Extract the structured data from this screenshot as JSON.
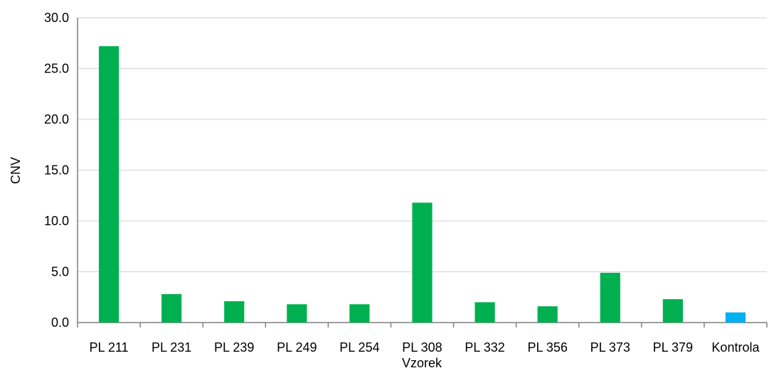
{
  "chart_data": {
    "type": "bar",
    "title": "",
    "xlabel": "Vzorek",
    "ylabel": "CNV",
    "ylim": [
      0,
      30
    ],
    "yticks": [
      "0.0",
      "5.0",
      "10.0",
      "15.0",
      "20.0",
      "25.0",
      "30.0"
    ],
    "grid": true,
    "legend": "none",
    "categories": [
      "PL 211",
      "PL 231",
      "PL 239",
      "PL 249",
      "PL 254",
      "PL 308",
      "PL 332",
      "PL 356",
      "PL 373",
      "PL 379",
      "Kontrola"
    ],
    "values": [
      27.2,
      2.8,
      2.1,
      1.8,
      1.8,
      11.8,
      2.0,
      1.6,
      4.9,
      2.3,
      1.0
    ],
    "colors": [
      "#00b050",
      "#00b050",
      "#00b050",
      "#00b050",
      "#00b050",
      "#00b050",
      "#00b050",
      "#00b050",
      "#00b050",
      "#00b050",
      "#00b0f0"
    ]
  }
}
